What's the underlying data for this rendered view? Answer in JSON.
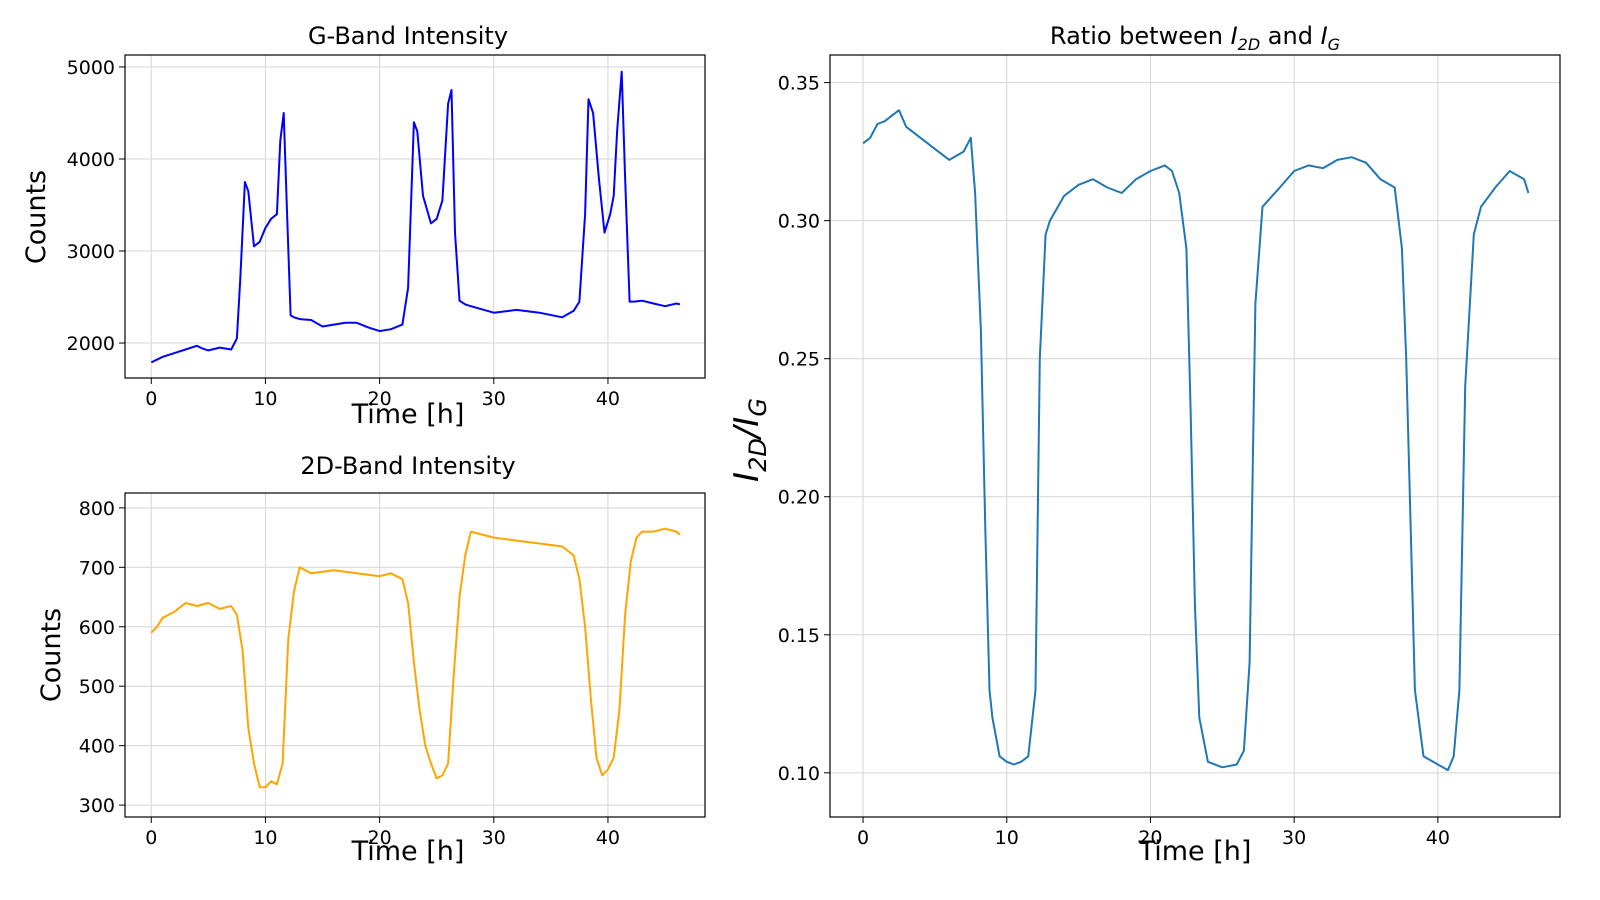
{
  "chart_data": [
    {
      "type": "line",
      "title": "G-Band Intensity",
      "xlabel": "Time [h]",
      "ylabel": "Counts",
      "xlim": [
        -2.3,
        48.5
      ],
      "ylim": [
        1620,
        5130
      ],
      "xticks": [
        0,
        10,
        20,
        30,
        40
      ],
      "xtick_labels": [
        "0",
        "10",
        "20",
        "30",
        "40"
      ],
      "yticks": [
        2000,
        3000,
        4000,
        5000
      ],
      "ytick_labels": [
        "2000",
        "3000",
        "4000",
        "5000"
      ],
      "grid": true,
      "color": "#0000ff",
      "series": [
        {
          "x": [
            0,
            1,
            2,
            3,
            4,
            4.5,
            5,
            6,
            7,
            7.5,
            7.8,
            8.2,
            8.5,
            9,
            9.5,
            10,
            10.5,
            11,
            11.3,
            11.6,
            11.9,
            12.2,
            12.5,
            13,
            14,
            15,
            16,
            17,
            18,
            19,
            20,
            21,
            22,
            22.5,
            23,
            23.3,
            23.8,
            24.5,
            25,
            25.5,
            26,
            26.3,
            26.6,
            27,
            27.5,
            28,
            30,
            32,
            34,
            36,
            37,
            37.5,
            38,
            38.3,
            38.7,
            39.2,
            39.7,
            40.2,
            40.5,
            40.8,
            41.2,
            41.5,
            41.9,
            42.3,
            43,
            44,
            45,
            46,
            46.3
          ],
          "y": [
            1790,
            1850,
            1890,
            1930,
            1970,
            1940,
            1920,
            1950,
            1930,
            2050,
            2700,
            3750,
            3650,
            3050,
            3100,
            3250,
            3350,
            3400,
            4200,
            4500,
            3400,
            2300,
            2280,
            2260,
            2250,
            2180,
            2200,
            2220,
            2220,
            2170,
            2130,
            2150,
            2200,
            2600,
            4400,
            4300,
            3600,
            3300,
            3350,
            3550,
            4600,
            4750,
            3200,
            2460,
            2420,
            2400,
            2330,
            2360,
            2330,
            2280,
            2350,
            2450,
            3400,
            4650,
            4500,
            3800,
            3200,
            3400,
            3600,
            4300,
            4950,
            3800,
            2450,
            2450,
            2460,
            2430,
            2400,
            2430,
            2420
          ]
        }
      ]
    },
    {
      "type": "line",
      "title": "2D-Band Intensity",
      "xlabel": "Time [h]",
      "ylabel": "Counts",
      "xlim": [
        -2.3,
        48.5
      ],
      "ylim": [
        280,
        825
      ],
      "xticks": [
        0,
        10,
        20,
        30,
        40
      ],
      "xtick_labels": [
        "0",
        "10",
        "20",
        "30",
        "40"
      ],
      "yticks": [
        300,
        400,
        500,
        600,
        700,
        800
      ],
      "ytick_labels": [
        "300",
        "400",
        "500",
        "600",
        "700",
        "800"
      ],
      "grid": true,
      "color": "#ffa500",
      "series": [
        {
          "x": [
            0,
            0.5,
            1,
            2,
            3,
            4,
            5,
            6,
            7,
            7.5,
            8,
            8.5,
            9,
            9.5,
            10,
            10.5,
            11,
            11.5,
            12,
            12.5,
            13,
            14,
            16,
            18,
            20,
            21,
            22,
            22.5,
            23,
            23.5,
            24,
            24.5,
            25,
            25.5,
            26,
            26.5,
            27,
            27.5,
            28,
            30,
            32,
            34,
            36,
            37,
            37.5,
            38,
            38.5,
            39,
            39.5,
            40,
            40.5,
            41,
            41.5,
            42,
            42.5,
            43,
            44,
            45,
            46,
            46.3
          ],
          "y": [
            590,
            600,
            615,
            625,
            640,
            635,
            640,
            630,
            635,
            620,
            560,
            430,
            370,
            330,
            330,
            340,
            335,
            370,
            580,
            660,
            700,
            690,
            695,
            690,
            685,
            690,
            680,
            640,
            540,
            460,
            400,
            370,
            345,
            350,
            370,
            520,
            650,
            720,
            760,
            750,
            745,
            740,
            735,
            720,
            680,
            600,
            480,
            380,
            350,
            360,
            380,
            460,
            620,
            710,
            750,
            760,
            760,
            765,
            760,
            755
          ]
        }
      ]
    },
    {
      "type": "line",
      "title": "Ratio between I2D and IG",
      "xlabel": "Time [h]",
      "ylabel": "I2D/IG",
      "xlim": [
        -2.3,
        48.5
      ],
      "ylim": [
        0.084,
        0.36
      ],
      "xticks": [
        0,
        10,
        20,
        30,
        40
      ],
      "xtick_labels": [
        "0",
        "10",
        "20",
        "30",
        "40"
      ],
      "yticks": [
        0.1,
        0.15,
        0.2,
        0.25,
        0.3,
        0.35
      ],
      "ytick_labels": [
        "0.10",
        "0.15",
        "0.20",
        "0.25",
        "0.30",
        "0.35"
      ],
      "grid": true,
      "color": "#1f77b4",
      "series": [
        {
          "x": [
            0,
            0.5,
            1,
            1.5,
            2,
            2.5,
            3,
            4,
            5,
            6,
            7,
            7.5,
            7.8,
            8.2,
            8.5,
            8.8,
            9,
            9.5,
            10,
            10.5,
            11,
            11.5,
            12,
            12.3,
            12.7,
            13,
            14,
            15,
            16,
            17,
            18,
            19,
            20,
            21,
            21.5,
            22,
            22.5,
            22.8,
            23.1,
            23.4,
            24,
            25,
            26,
            26.5,
            26.9,
            27.3,
            27.8,
            29,
            30,
            31,
            32,
            33,
            34,
            35,
            36,
            37,
            37.5,
            37.8,
            38.1,
            38.4,
            39,
            40,
            40.7,
            41.1,
            41.5,
            41.9,
            42.5,
            43,
            44,
            45,
            46,
            46.3
          ],
          "y": [
            0.328,
            0.33,
            0.335,
            0.336,
            0.338,
            0.34,
            0.334,
            0.33,
            0.326,
            0.322,
            0.325,
            0.33,
            0.31,
            0.26,
            0.19,
            0.13,
            0.12,
            0.106,
            0.104,
            0.103,
            0.104,
            0.106,
            0.13,
            0.25,
            0.295,
            0.3,
            0.309,
            0.313,
            0.315,
            0.312,
            0.31,
            0.315,
            0.318,
            0.32,
            0.318,
            0.31,
            0.29,
            0.23,
            0.16,
            0.12,
            0.104,
            0.102,
            0.103,
            0.108,
            0.14,
            0.27,
            0.305,
            0.312,
            0.318,
            0.32,
            0.319,
            0.322,
            0.323,
            0.321,
            0.315,
            0.312,
            0.29,
            0.25,
            0.19,
            0.13,
            0.106,
            0.103,
            0.101,
            0.106,
            0.13,
            0.24,
            0.295,
            0.305,
            0.312,
            0.318,
            0.315,
            0.31
          ]
        }
      ]
    }
  ]
}
